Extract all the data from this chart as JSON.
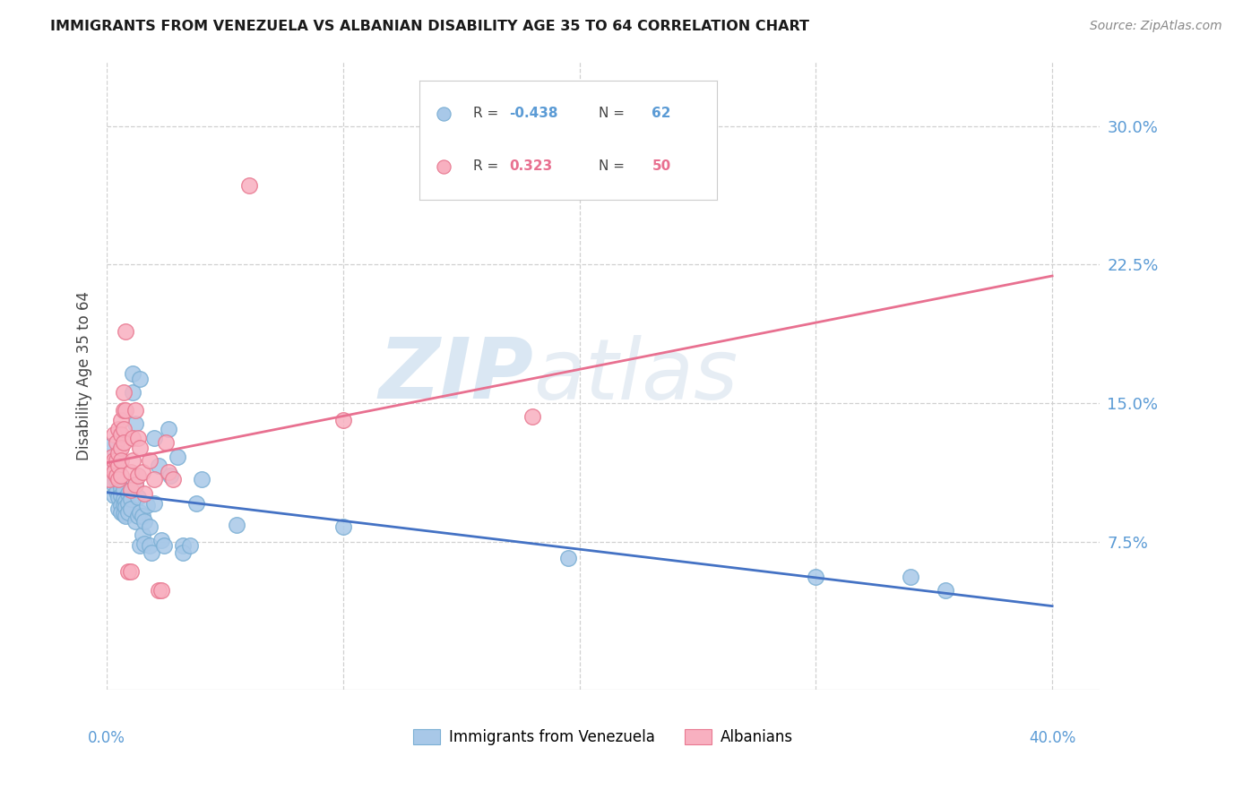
{
  "title": "IMMIGRANTS FROM VENEZUELA VS ALBANIAN DISABILITY AGE 35 TO 64 CORRELATION CHART",
  "source": "Source: ZipAtlas.com",
  "ylabel": "Disability Age 35 to 64",
  "ytick_values": [
    0.075,
    0.15,
    0.225,
    0.3
  ],
  "ytick_labels": [
    "7.5%",
    "15.0%",
    "22.5%",
    "30.0%"
  ],
  "xlim": [
    0.0,
    0.42
  ],
  "ylim": [
    -0.005,
    0.335
  ],
  "legend_label1": "Immigrants from Venezuela",
  "legend_label2": "Albanians",
  "watermark_line1": "ZIP",
  "watermark_line2": "atlas",
  "blue_color": "#a8c8e8",
  "blue_edge_color": "#7bafd4",
  "pink_color": "#f8b0c0",
  "pink_edge_color": "#e87890",
  "blue_line_color": "#4472c4",
  "pink_line_color": "#e87090",
  "blue_points": [
    [
      0.001,
      0.127
    ],
    [
      0.001,
      0.113
    ],
    [
      0.003,
      0.106
    ],
    [
      0.003,
      0.1
    ],
    [
      0.004,
      0.108
    ],
    [
      0.004,
      0.102
    ],
    [
      0.005,
      0.108
    ],
    [
      0.005,
      0.099
    ],
    [
      0.005,
      0.093
    ],
    [
      0.006,
      0.104
    ],
    [
      0.006,
      0.1
    ],
    [
      0.006,
      0.095
    ],
    [
      0.006,
      0.091
    ],
    [
      0.007,
      0.103
    ],
    [
      0.007,
      0.098
    ],
    [
      0.007,
      0.095
    ],
    [
      0.007,
      0.09
    ],
    [
      0.008,
      0.097
    ],
    [
      0.008,
      0.094
    ],
    [
      0.008,
      0.089
    ],
    [
      0.009,
      0.101
    ],
    [
      0.009,
      0.096
    ],
    [
      0.009,
      0.091
    ],
    [
      0.01,
      0.098
    ],
    [
      0.01,
      0.093
    ],
    [
      0.011,
      0.166
    ],
    [
      0.011,
      0.156
    ],
    [
      0.012,
      0.139
    ],
    [
      0.012,
      0.106
    ],
    [
      0.012,
      0.086
    ],
    [
      0.013,
      0.099
    ],
    [
      0.013,
      0.089
    ],
    [
      0.014,
      0.163
    ],
    [
      0.014,
      0.091
    ],
    [
      0.014,
      0.073
    ],
    [
      0.015,
      0.089
    ],
    [
      0.015,
      0.079
    ],
    [
      0.016,
      0.086
    ],
    [
      0.016,
      0.074
    ],
    [
      0.017,
      0.095
    ],
    [
      0.018,
      0.083
    ],
    [
      0.018,
      0.073
    ],
    [
      0.019,
      0.069
    ],
    [
      0.02,
      0.131
    ],
    [
      0.02,
      0.096
    ],
    [
      0.022,
      0.116
    ],
    [
      0.023,
      0.076
    ],
    [
      0.024,
      0.073
    ],
    [
      0.026,
      0.136
    ],
    [
      0.027,
      0.111
    ],
    [
      0.03,
      0.121
    ],
    [
      0.032,
      0.073
    ],
    [
      0.032,
      0.069
    ],
    [
      0.035,
      0.073
    ],
    [
      0.038,
      0.096
    ],
    [
      0.04,
      0.109
    ],
    [
      0.055,
      0.084
    ],
    [
      0.1,
      0.083
    ],
    [
      0.195,
      0.066
    ],
    [
      0.3,
      0.056
    ],
    [
      0.34,
      0.056
    ],
    [
      0.355,
      0.049
    ]
  ],
  "pink_points": [
    [
      0.001,
      0.116
    ],
    [
      0.001,
      0.109
    ],
    [
      0.002,
      0.121
    ],
    [
      0.003,
      0.133
    ],
    [
      0.003,
      0.119
    ],
    [
      0.003,
      0.113
    ],
    [
      0.004,
      0.129
    ],
    [
      0.004,
      0.119
    ],
    [
      0.004,
      0.111
    ],
    [
      0.005,
      0.136
    ],
    [
      0.005,
      0.123
    ],
    [
      0.005,
      0.116
    ],
    [
      0.005,
      0.109
    ],
    [
      0.006,
      0.141
    ],
    [
      0.006,
      0.133
    ],
    [
      0.006,
      0.126
    ],
    [
      0.006,
      0.119
    ],
    [
      0.006,
      0.111
    ],
    [
      0.007,
      0.156
    ],
    [
      0.007,
      0.146
    ],
    [
      0.007,
      0.136
    ],
    [
      0.007,
      0.129
    ],
    [
      0.008,
      0.146
    ],
    [
      0.008,
      0.189
    ],
    [
      0.009,
      0.059
    ],
    [
      0.01,
      0.059
    ],
    [
      0.01,
      0.113
    ],
    [
      0.01,
      0.103
    ],
    [
      0.011,
      0.131
    ],
    [
      0.011,
      0.119
    ],
    [
      0.012,
      0.146
    ],
    [
      0.012,
      0.106
    ],
    [
      0.013,
      0.131
    ],
    [
      0.013,
      0.111
    ],
    [
      0.014,
      0.126
    ],
    [
      0.015,
      0.113
    ],
    [
      0.016,
      0.101
    ],
    [
      0.018,
      0.119
    ],
    [
      0.02,
      0.109
    ],
    [
      0.022,
      0.049
    ],
    [
      0.023,
      0.049
    ],
    [
      0.025,
      0.129
    ],
    [
      0.026,
      0.113
    ],
    [
      0.028,
      0.109
    ],
    [
      0.06,
      0.268
    ],
    [
      0.1,
      0.141
    ],
    [
      0.18,
      0.143
    ]
  ]
}
